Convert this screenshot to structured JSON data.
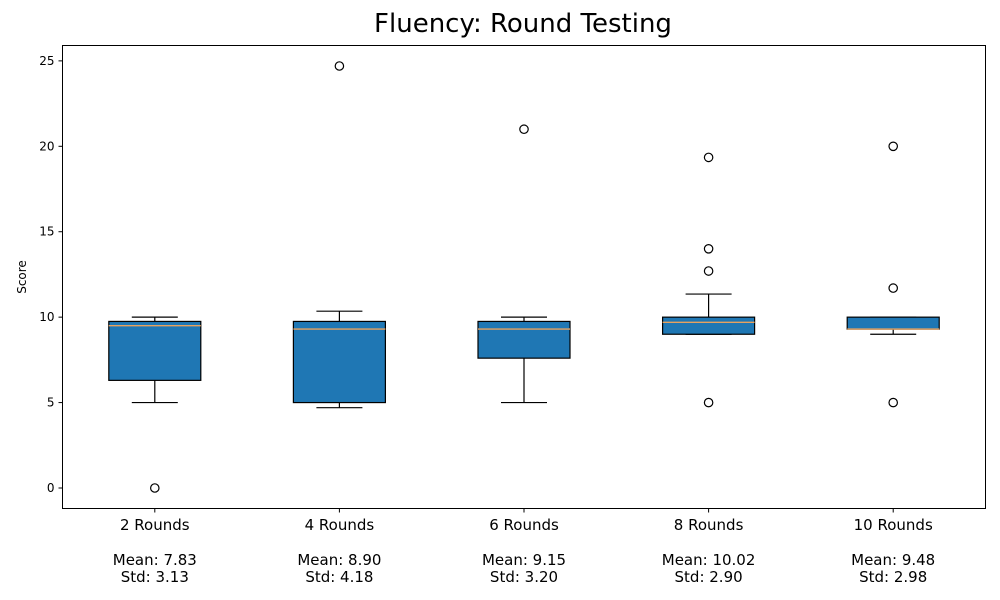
{
  "chart_data": {
    "type": "box",
    "title": "Fluency: Round Testing",
    "xlabel": "",
    "ylabel": "Score",
    "ylim": [
      -1.2,
      25.9
    ],
    "yticks": [
      0,
      5,
      10,
      15,
      20,
      25
    ],
    "box_color": "#1f77b4",
    "median_color": "#e8a25f",
    "grid": false,
    "categories": [
      "2 Rounds",
      "4 Rounds",
      "6 Rounds",
      "8 Rounds",
      "10 Rounds"
    ],
    "stats": [
      {
        "mean_label": "Mean: 7.83",
        "std_label": "Std: 3.13"
      },
      {
        "mean_label": "Mean: 8.90",
        "std_label": "Std: 4.18"
      },
      {
        "mean_label": "Mean: 9.15",
        "std_label": "Std: 3.20"
      },
      {
        "mean_label": "Mean: 10.02",
        "std_label": "Std: 2.90"
      },
      {
        "mean_label": "Mean: 9.48",
        "std_label": "Std: 2.98"
      }
    ],
    "boxes": [
      {
        "whisker_low": 5.0,
        "q1": 6.3,
        "median": 9.5,
        "q3": 9.75,
        "whisker_high": 10.0,
        "outliers": [
          0.0
        ]
      },
      {
        "whisker_low": 4.7,
        "q1": 5.0,
        "median": 9.3,
        "q3": 9.75,
        "whisker_high": 10.35,
        "outliers": [
          24.7
        ]
      },
      {
        "whisker_low": 5.0,
        "q1": 7.6,
        "median": 9.3,
        "q3": 9.75,
        "whisker_high": 10.0,
        "outliers": [
          21.0
        ]
      },
      {
        "whisker_low": 9.0,
        "q1": 9.0,
        "median": 9.7,
        "q3": 10.0,
        "whisker_high": 11.35,
        "outliers": [
          5.0,
          12.7,
          14.0,
          19.35
        ]
      },
      {
        "whisker_low": 9.0,
        "q1": 9.3,
        "median": 9.3,
        "q3": 10.0,
        "whisker_high": 10.0,
        "outliers": [
          5.0,
          11.7,
          20.0
        ]
      }
    ]
  }
}
